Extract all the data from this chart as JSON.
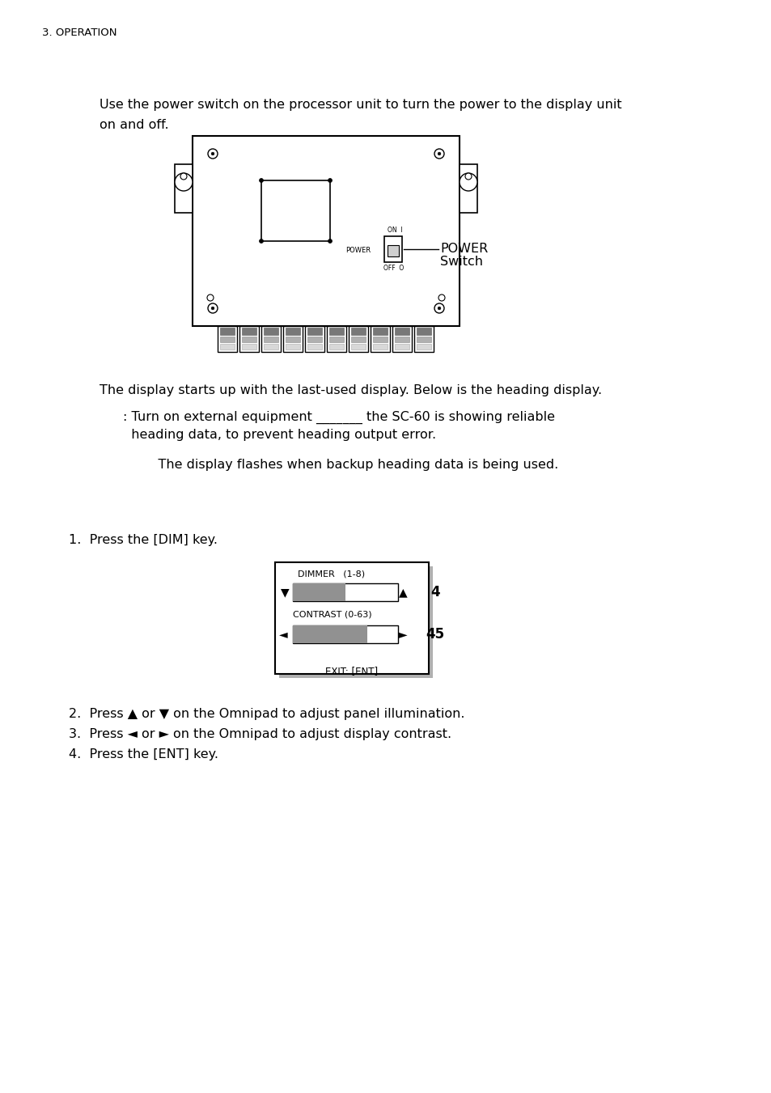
{
  "page_header": "3. OPERATION",
  "section1_text1": "Use the power switch on the processor unit to turn the power to the display unit",
  "section1_text2": "on and off.",
  "section2_text1": "The display starts up with the last-used display. Below is the heading display.",
  "section2_text2": ": Turn on external equipment _______ the SC-60 is showing reliable",
  "section2_text3": "  heading data, to prevent heading output error.",
  "section2_text4": "    The display flashes when backup heading data is being used.",
  "section3_header": "1.  Press the [DIM] key.",
  "dimmer_label": "DIMMER   (1-8)",
  "contrast_label": "CONTRAST (0-63)",
  "exit_label": "EXIT: [ENT]",
  "dimmer_value": "4",
  "contrast_value": "45",
  "bullet2": "2.  Press ▲ or ▼ on the Omnipad to adjust panel illumination.",
  "bullet3": "3.  Press ◄ or ► on the Omnipad to adjust display contrast.",
  "bullet4": "4.  Press the [ENT] key.",
  "bg_color": "#ffffff",
  "text_color": "#000000",
  "gray_color": "#919191",
  "shadow_color": "#b0b0b0"
}
